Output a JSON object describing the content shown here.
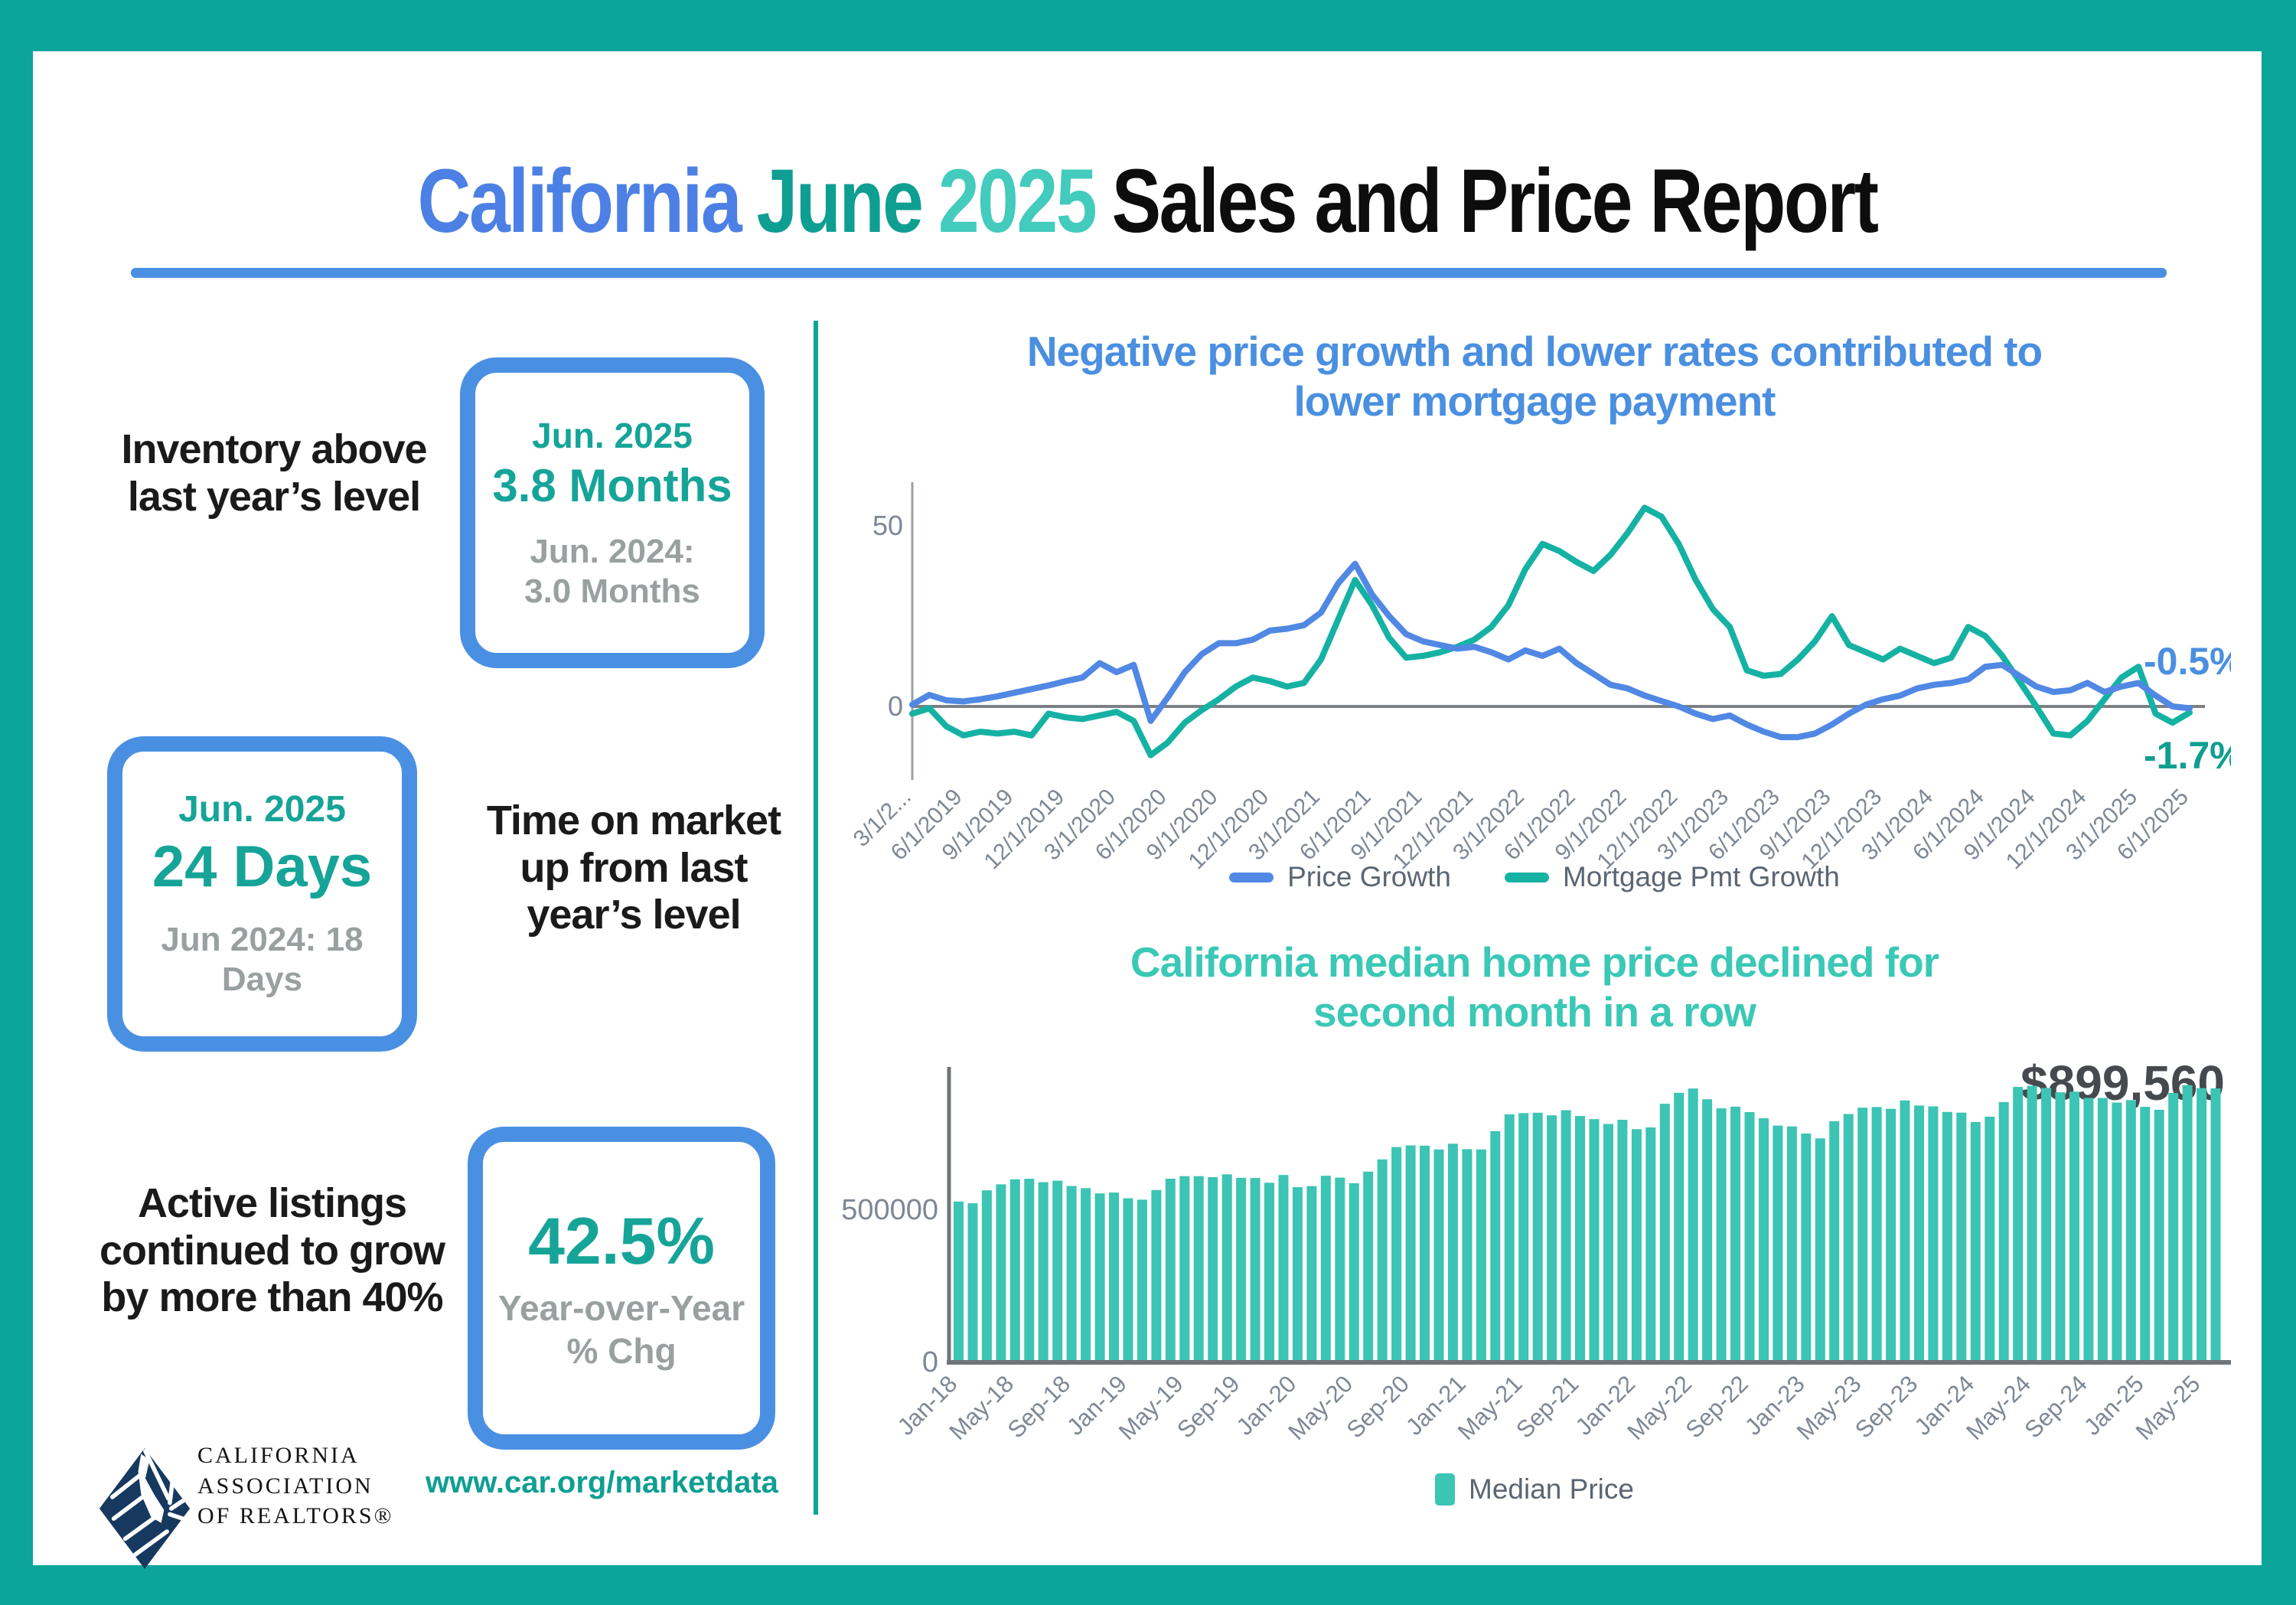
{
  "title": {
    "part1": "California",
    "part2": "June",
    "part3": "2025",
    "part4": "Sales and Price Report"
  },
  "stats": {
    "inventory": {
      "label": "Inventory above last year’s level",
      "period": "Jun. 2025",
      "value": "3.8 Months",
      "compare1": "Jun. 2024:",
      "compare2": "3.0 Months"
    },
    "time_on_market": {
      "label": "Time on market up from last year’s level",
      "period": "Jun. 2025",
      "value": "24 Days",
      "compare1": "Jun 2024: 18",
      "compare2": "Days"
    },
    "active_listings": {
      "label": "Active listings continued to grow by more than 40%",
      "value": "42.5%",
      "sub1": "Year-over-Year",
      "sub2": "% Chg"
    }
  },
  "footer": {
    "logo_line1": "CALIFORNIA",
    "logo_line2": "ASSOCIATION",
    "logo_line3": "OF REALTORS®",
    "url": "www.car.org/marketdata"
  },
  "colors": {
    "frame_teal": "#0ba59b",
    "accent_blue": "#4a90e2",
    "title_blue": "#4d80e4",
    "title_teal_dark": "#0f9e92",
    "title_teal_light": "#43cbbd",
    "stat_teal": "#16a498",
    "stat_gray": "#9aa0a0",
    "line_blue": "#5188e4",
    "line_teal": "#15b2a4",
    "bar_teal": "#3cc4b4",
    "axis_gray": "#70757a",
    "tick_gray": "#7e8794",
    "annotation_gray": "#46494d",
    "logo_navy": "#17395f"
  },
  "chart_data": [
    {
      "type": "line",
      "title": "Negative price growth and lower rates contributed to lower mortgage payment",
      "title_lines": [
        "Negative price growth and lower rates contributed to",
        "lower mortgage payment"
      ],
      "xlabel": "",
      "ylabel": "",
      "ylim": [
        -20,
        60
      ],
      "grid": false,
      "legend_position": "bottom",
      "yticks": [
        {
          "value": 0,
          "label": "0"
        },
        {
          "value": 50,
          "label": "50"
        }
      ],
      "x": [
        "3/1/2019",
        "4/1/2019",
        "5/1/2019",
        "6/1/2019",
        "7/1/2019",
        "8/1/2019",
        "9/1/2019",
        "10/1/2019",
        "11/1/2019",
        "12/1/2019",
        "1/1/2020",
        "2/1/2020",
        "3/1/2020",
        "4/1/2020",
        "5/1/2020",
        "6/1/2020",
        "7/1/2020",
        "8/1/2020",
        "9/1/2020",
        "10/1/2020",
        "11/1/2020",
        "12/1/2020",
        "1/1/2021",
        "2/1/2021",
        "3/1/2021",
        "4/1/2021",
        "5/1/2021",
        "6/1/2021",
        "7/1/2021",
        "8/1/2021",
        "9/1/2021",
        "10/1/2021",
        "11/1/2021",
        "12/1/2021",
        "1/1/2022",
        "2/1/2022",
        "3/1/2022",
        "4/1/2022",
        "5/1/2022",
        "6/1/2022",
        "7/1/2022",
        "8/1/2022",
        "9/1/2022",
        "10/1/2022",
        "11/1/2022",
        "12/1/2022",
        "1/1/2023",
        "2/1/2023",
        "3/1/2023",
        "4/1/2023",
        "5/1/2023",
        "6/1/2023",
        "7/1/2023",
        "8/1/2023",
        "9/1/2023",
        "10/1/2023",
        "11/1/2023",
        "12/1/2023",
        "1/1/2024",
        "2/1/2024",
        "3/1/2024",
        "4/1/2024",
        "5/1/2024",
        "6/1/2024",
        "7/1/2024",
        "8/1/2024",
        "9/1/2024",
        "10/1/2024",
        "11/1/2024",
        "12/1/2024",
        "1/1/2025",
        "2/1/2025",
        "3/1/2025",
        "4/1/2025",
        "5/1/2025",
        "6/1/2025"
      ],
      "tick_labels": [
        "3/1/2...",
        "6/1/2019",
        "9/1/2019",
        "12/1/2019",
        "3/1/2020",
        "6/1/2020",
        "9/1/2020",
        "12/1/2020",
        "3/1/2021",
        "6/1/2021",
        "9/1/2021",
        "12/1/2021",
        "3/1/2022",
        "6/1/2022",
        "9/1/2022",
        "12/1/2022",
        "3/1/2023",
        "6/1/2023",
        "9/1/2023",
        "12/1/2023",
        "3/1/2024",
        "6/1/2024",
        "9/1/2024",
        "12/1/2024",
        "3/1/2025",
        "6/1/2025"
      ],
      "tick_every": 3,
      "series": [
        {
          "name": "Price Growth",
          "color": "#5188e4",
          "values": [
            0.5,
            3.2,
            1.7,
            1.4,
            2.0,
            2.8,
            3.8,
            4.8,
            5.8,
            7.0,
            8.0,
            12.0,
            9.5,
            11.5,
            -4.0,
            2.5,
            9.5,
            14.5,
            17.5,
            17.5,
            18.5,
            21.0,
            21.5,
            22.5,
            26.0,
            34.0,
            39.5,
            31.0,
            25.0,
            20.0,
            18.0,
            17.0,
            16.0,
            16.5,
            15.0,
            13.0,
            15.5,
            14.0,
            16.0,
            12.0,
            9.0,
            6.0,
            5.0,
            3.0,
            1.5,
            0.0,
            -2.0,
            -3.5,
            -2.5,
            -5.0,
            -7.0,
            -8.5,
            -8.5,
            -7.5,
            -5.0,
            -2.0,
            0.5,
            2.0,
            3.0,
            5.0,
            6.0,
            6.5,
            7.5,
            11.0,
            11.5,
            8.5,
            5.5,
            4.0,
            4.5,
            6.5,
            4.0,
            5.5,
            6.5,
            3.0,
            0.0,
            -0.5
          ]
        },
        {
          "name": "Mortgage Pmt Growth",
          "color": "#15b2a4",
          "values": [
            -2.0,
            -0.5,
            -5.5,
            -8.0,
            -7.0,
            -7.5,
            -7.0,
            -8.0,
            -2.0,
            -3.0,
            -3.5,
            -2.5,
            -1.5,
            -4.0,
            -13.5,
            -10.0,
            -4.5,
            -1.0,
            2.0,
            5.5,
            8.0,
            7.0,
            5.5,
            6.5,
            13.0,
            24.0,
            35.0,
            28.0,
            19.0,
            13.5,
            14.0,
            15.0,
            16.5,
            18.5,
            22.0,
            28.0,
            38.0,
            45.0,
            43.0,
            40.0,
            37.5,
            42.0,
            48.0,
            55.0,
            52.5,
            45.0,
            35.0,
            27.0,
            22.0,
            10.0,
            8.5,
            9.0,
            13.0,
            18.0,
            25.0,
            17.0,
            15.0,
            13.0,
            16.0,
            14.0,
            12.0,
            13.5,
            22.0,
            19.5,
            14.0,
            7.0,
            0.0,
            -7.5,
            -8.0,
            -4.0,
            2.0,
            8.0,
            11.0,
            -2.0,
            -4.5,
            -1.7
          ]
        }
      ],
      "end_labels": [
        {
          "text": "-0.5%",
          "color": "#4a8fe0"
        },
        {
          "text": "-1.7%",
          "color": "#0f9e92"
        }
      ]
    },
    {
      "type": "bar",
      "title": "California median home price declined for second month in a row",
      "title_lines": [
        "California median home price declined for",
        "second month in a row"
      ],
      "annotation": "$899,560",
      "xlabel": "",
      "ylabel": "",
      "ylim": [
        0,
        1050000
      ],
      "grid": false,
      "legend_position": "bottom",
      "yticks": [
        {
          "value": 0,
          "label": "0"
        },
        {
          "value": 500000,
          "label": "500000"
        }
      ],
      "categories": [
        "Jan-18",
        "Feb-18",
        "Mar-18",
        "Apr-18",
        "May-18",
        "Jun-18",
        "Jul-18",
        "Aug-18",
        "Sep-18",
        "Oct-18",
        "Nov-18",
        "Dec-18",
        "Jan-19",
        "Feb-19",
        "Mar-19",
        "Apr-19",
        "May-19",
        "Jun-19",
        "Jul-19",
        "Aug-19",
        "Sep-19",
        "Oct-19",
        "Nov-19",
        "Dec-19",
        "Jan-20",
        "Feb-20",
        "Mar-20",
        "Apr-20",
        "May-20",
        "Jun-20",
        "Jul-20",
        "Aug-20",
        "Sep-20",
        "Oct-20",
        "Nov-20",
        "Dec-20",
        "Jan-21",
        "Feb-21",
        "Mar-21",
        "Apr-21",
        "May-21",
        "Jun-21",
        "Jul-21",
        "Aug-21",
        "Sep-21",
        "Oct-21",
        "Nov-21",
        "Dec-21",
        "Jan-22",
        "Feb-22",
        "Mar-22",
        "Apr-22",
        "May-22",
        "Jun-22",
        "Jul-22",
        "Aug-22",
        "Sep-22",
        "Oct-22",
        "Nov-22",
        "Dec-22",
        "Jan-23",
        "Feb-23",
        "Mar-23",
        "Apr-23",
        "May-23",
        "Jun-23",
        "Jul-23",
        "Aug-23",
        "Sep-23",
        "Oct-23",
        "Nov-23",
        "Dec-23",
        "Jan-24",
        "Feb-24",
        "Mar-24",
        "Apr-24",
        "May-24",
        "Jun-24",
        "Jul-24",
        "Aug-24",
        "Sep-24",
        "Oct-24",
        "Nov-24",
        "Dec-24",
        "Jan-25",
        "Feb-25",
        "Mar-25",
        "Apr-25",
        "May-25",
        "Jun-25"
      ],
      "tick_labels": [
        "Jan-18",
        "May-18",
        "Sep-18",
        "Jan-19",
        "May-19",
        "Sep-19",
        "Jan-20",
        "May-20",
        "Sep-20",
        "Jan-21",
        "May-21",
        "Sep-21",
        "Jan-22",
        "May-22",
        "Sep-22",
        "Jan-23",
        "May-23",
        "Sep-23",
        "Jan-24",
        "May-24",
        "Sep-24",
        "Jan-25",
        "May-25"
      ],
      "tick_every": 4,
      "series": [
        {
          "name": "Median Price",
          "color": "#3cc4b4",
          "values": [
            527800,
            522440,
            564830,
            584460,
            600860,
            602760,
            591460,
            596410,
            578850,
            572000,
            554760,
            557600,
            538690,
            534140,
            565880,
            602920,
            611190,
            611420,
            607990,
            617410,
            605680,
            605280,
            589770,
            615090,
            575160,
            578530,
            612440,
            606410,
            588070,
            626170,
            666320,
            706900,
            712430,
            711300,
            699000,
            717930,
            699890,
            699000,
            758990,
            813980,
            818260,
            819630,
            811170,
            827940,
            808890,
            798440,
            782480,
            796570,
            765580,
            771270,
            849080,
            884890,
            898980,
            863790,
            833910,
            839460,
            821680,
            801190,
            777500,
            774580,
            751330,
            735480,
            791490,
            815340,
            836110,
            838260,
            832340,
            859800,
            843340,
            840360,
            822200,
            819740,
            788940,
            806490,
            854490,
            904210,
            908040,
            900720,
            886560,
            888740,
            868150,
            868050,
            852880,
            861020,
            838850,
            829060,
            884350,
            910160,
            900170,
            899560
          ]
        }
      ]
    }
  ]
}
